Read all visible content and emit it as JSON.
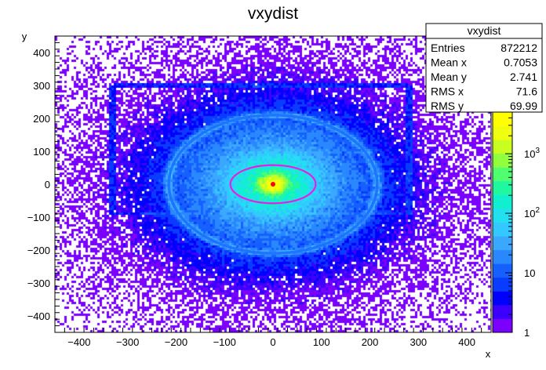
{
  "chart_data": {
    "type": "heatmap",
    "title": "vxydist",
    "xlabel": "x",
    "ylabel": "y",
    "xlim": [
      -450,
      450
    ],
    "ylim": [
      -450,
      450
    ],
    "x_ticks": [
      -400,
      -300,
      -200,
      -100,
      0,
      100,
      200,
      300,
      400
    ],
    "y_ticks": [
      -400,
      -300,
      -200,
      -100,
      0,
      100,
      200,
      300,
      400
    ],
    "color_scale": "log",
    "z_range": [
      1,
      5000
    ],
    "z_tick_labels": [
      {
        "value": 1,
        "base": "1",
        "exp": ""
      },
      {
        "value": 10,
        "base": "10",
        "exp": ""
      },
      {
        "value": 100,
        "base": "10",
        "exp": "2"
      },
      {
        "value": 1000,
        "base": "10",
        "exp": "3"
      }
    ],
    "palette": [
      "#7a00ff",
      "#3c00ff",
      "#0000ff",
      "#0a3cff",
      "#1660ff",
      "#2a88ff",
      "#3aa8ff",
      "#33c8ff",
      "#22e0f0",
      "#10f0d0",
      "#20f8a0",
      "#50ff70",
      "#90ff40",
      "#c8ff20",
      "#f0ff10",
      "#ffff00"
    ],
    "features": {
      "rectangle": {
        "x": [
          -330,
          280
        ],
        "y": [
          -90,
          300
        ]
      },
      "outer_ring": {
        "center": [
          0,
          0
        ],
        "rx": 215,
        "ry": 210,
        "color": "#1e6cff"
      },
      "inner_ellipse": {
        "center": [
          0,
          0
        ],
        "rx": 88,
        "ry": 58,
        "color": "#e81ee8"
      },
      "core": {
        "center": [
          0,
          0
        ],
        "color": "#ff0000"
      }
    },
    "stats": {
      "title": "vxydist",
      "rows": [
        {
          "label": "Entries",
          "value": "872212"
        },
        {
          "label": "Mean x",
          "value": "0.7053"
        },
        {
          "label": "Mean y",
          "value": "2.741"
        },
        {
          "label": "RMS x",
          "value": "71.6"
        },
        {
          "label": "RMS y",
          "value": "69.99"
        }
      ]
    }
  }
}
